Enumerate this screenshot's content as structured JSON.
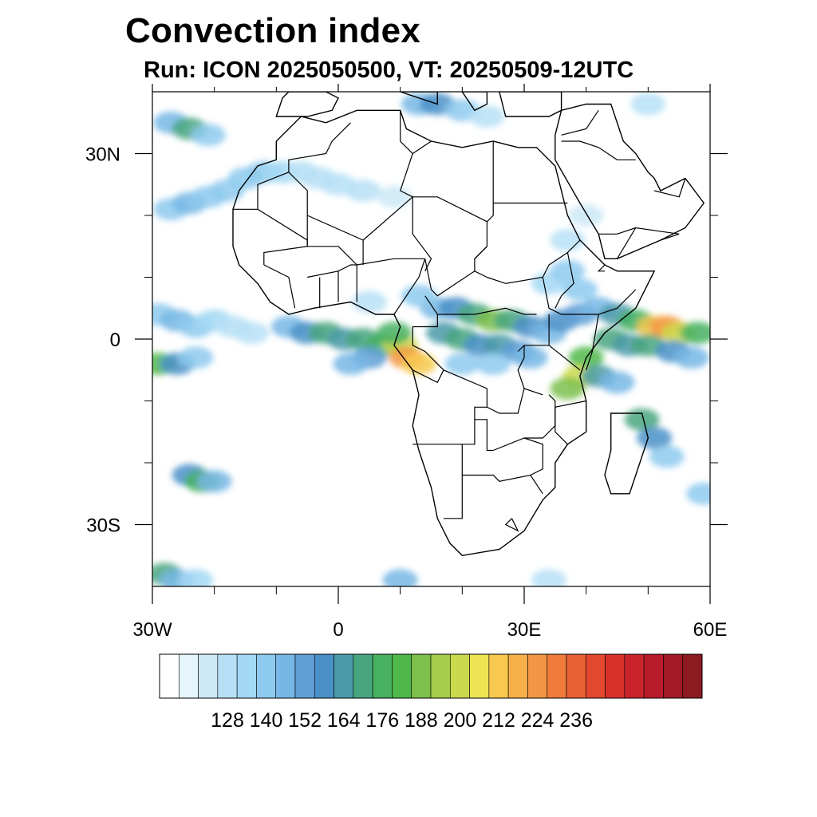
{
  "title": "Convection index",
  "subtitle": "Run: ICON 2025050500,  VT: 20250509-12UTC",
  "map": {
    "lon_range": [
      -30,
      60
    ],
    "lat_range": [
      -40,
      40
    ],
    "lon_ticks": [
      {
        "value": -30,
        "label": "30W"
      },
      {
        "value": 0,
        "label": "0"
      },
      {
        "value": 30,
        "label": "30E"
      },
      {
        "value": 60,
        "label": "60E"
      }
    ],
    "lat_ticks": [
      {
        "value": 30,
        "label": "30N"
      },
      {
        "value": 0,
        "label": "0"
      },
      {
        "value": -30,
        "label": "30S"
      }
    ],
    "minor_lon_ticks": [
      -20,
      -10,
      10,
      20,
      40,
      50
    ],
    "minor_lat_ticks": [
      20,
      10,
      -10,
      -20
    ]
  },
  "colorbar": {
    "colors": [
      "#ffffff",
      "#e6f4fb",
      "#cde9f7",
      "#b7e0f6",
      "#a3d8f5",
      "#8ecaee",
      "#77b7e5",
      "#5f9fd6",
      "#4a90c8",
      "#4a9aa8",
      "#48a67f",
      "#47b061",
      "#4fb84a",
      "#7dc04c",
      "#a7cd4c",
      "#cbd94d",
      "#ede454",
      "#f7c94e",
      "#f6b04a",
      "#f39744",
      "#f07b3b",
      "#e85f33",
      "#e2482e",
      "#d9302c",
      "#c9232c",
      "#b81c2a",
      "#a11a25",
      "#8c1a20"
    ],
    "labels": [
      "128",
      "140",
      "152",
      "164",
      "176",
      "188",
      "200",
      "212",
      "224",
      "236"
    ],
    "label_box_index": [
      2,
      4,
      6,
      8,
      10,
      12,
      14,
      16,
      18,
      20
    ]
  },
  "field_cells": [
    {
      "lon": -27,
      "lat": 35,
      "v": 150
    },
    {
      "lon": -24,
      "lat": 34,
      "v": 170
    },
    {
      "lon": -21,
      "lat": 33,
      "v": 140
    },
    {
      "lon": -27,
      "lat": 21,
      "v": 140
    },
    {
      "lon": -24,
      "lat": 22,
      "v": 150
    },
    {
      "lon": -21,
      "lat": 23,
      "v": 145
    },
    {
      "lon": -18,
      "lat": 24,
      "v": 140
    },
    {
      "lon": -15,
      "lat": 26,
      "v": 145
    },
    {
      "lon": -12,
      "lat": 27,
      "v": 140
    },
    {
      "lon": -9,
      "lat": 27,
      "v": 135
    },
    {
      "lon": -6,
      "lat": 27,
      "v": 132
    },
    {
      "lon": -3,
      "lat": 26,
      "v": 130
    },
    {
      "lon": 0,
      "lat": 25,
      "v": 130
    },
    {
      "lon": 4,
      "lat": 24,
      "v": 128
    },
    {
      "lon": 9,
      "lat": 23,
      "v": 126
    },
    {
      "lon": 13,
      "lat": 38,
      "v": 150
    },
    {
      "lon": 16,
      "lat": 38,
      "v": 160
    },
    {
      "lon": 20,
      "lat": 37,
      "v": 140
    },
    {
      "lon": 24,
      "lat": 36,
      "v": 130
    },
    {
      "lon": 50,
      "lat": 38,
      "v": 130
    },
    {
      "lon": -29,
      "lat": 4,
      "v": 140
    },
    {
      "lon": -26,
      "lat": 3,
      "v": 150
    },
    {
      "lon": -23,
      "lat": 2,
      "v": 140
    },
    {
      "lon": -20,
      "lat": 3,
      "v": 135
    },
    {
      "lon": -17,
      "lat": 2,
      "v": 130
    },
    {
      "lon": -14,
      "lat": 1,
      "v": 128
    },
    {
      "lon": -29,
      "lat": -4,
      "v": 185
    },
    {
      "lon": -26,
      "lat": -4,
      "v": 160
    },
    {
      "lon": -23,
      "lat": -3,
      "v": 145
    },
    {
      "lon": -8,
      "lat": 2,
      "v": 150
    },
    {
      "lon": -5,
      "lat": 1,
      "v": 160
    },
    {
      "lon": -2,
      "lat": 1,
      "v": 170
    },
    {
      "lon": 1,
      "lat": 0,
      "v": 165
    },
    {
      "lon": 4,
      "lat": 0,
      "v": 175
    },
    {
      "lon": 7,
      "lat": -1,
      "v": 180
    },
    {
      "lon": 10,
      "lat": -1,
      "v": 200
    },
    {
      "lon": 11,
      "lat": -3,
      "v": 225
    },
    {
      "lon": 13,
      "lat": -4,
      "v": 215
    },
    {
      "lon": 9,
      "lat": 1,
      "v": 180
    },
    {
      "lon": 5,
      "lat": -3,
      "v": 155
    },
    {
      "lon": 2,
      "lat": -4,
      "v": 150
    },
    {
      "lon": 16,
      "lat": 5,
      "v": 150
    },
    {
      "lon": 19,
      "lat": 5,
      "v": 160
    },
    {
      "lon": 22,
      "lat": 4,
      "v": 175
    },
    {
      "lon": 25,
      "lat": 3,
      "v": 190
    },
    {
      "lon": 28,
      "lat": 3,
      "v": 170
    },
    {
      "lon": 31,
      "lat": 2,
      "v": 160
    },
    {
      "lon": 34,
      "lat": 1,
      "v": 150
    },
    {
      "lon": 17,
      "lat": 1,
      "v": 165
    },
    {
      "lon": 20,
      "lat": 0,
      "v": 170
    },
    {
      "lon": 23,
      "lat": -1,
      "v": 160
    },
    {
      "lon": 26,
      "lat": -1,
      "v": 165
    },
    {
      "lon": 29,
      "lat": -2,
      "v": 155
    },
    {
      "lon": 20,
      "lat": -4,
      "v": 145
    },
    {
      "lon": 25,
      "lat": -4,
      "v": 140
    },
    {
      "lon": 31,
      "lat": -3,
      "v": 150
    },
    {
      "lon": 36,
      "lat": 3,
      "v": 160
    },
    {
      "lon": 39,
      "lat": 4,
      "v": 155
    },
    {
      "lon": 42,
      "lat": 5,
      "v": 150
    },
    {
      "lon": 45,
      "lat": 4,
      "v": 165
    },
    {
      "lon": 48,
      "lat": 3,
      "v": 180
    },
    {
      "lon": 51,
      "lat": 2,
      "v": 215
    },
    {
      "lon": 53,
      "lat": 2,
      "v": 228
    },
    {
      "lon": 55,
      "lat": 1,
      "v": 205
    },
    {
      "lon": 58,
      "lat": 1,
      "v": 180
    },
    {
      "lon": 44,
      "lat": 0,
      "v": 170
    },
    {
      "lon": 47,
      "lat": -1,
      "v": 165
    },
    {
      "lon": 50,
      "lat": -1,
      "v": 170
    },
    {
      "lon": 54,
      "lat": -2,
      "v": 160
    },
    {
      "lon": 57,
      "lat": -3,
      "v": 150
    },
    {
      "lon": 40,
      "lat": -3,
      "v": 185
    },
    {
      "lon": 39,
      "lat": -6,
      "v": 200
    },
    {
      "lon": 37,
      "lat": -8,
      "v": 190
    },
    {
      "lon": 42,
      "lat": -6,
      "v": 165
    },
    {
      "lon": 45,
      "lat": -7,
      "v": 150
    },
    {
      "lon": 49,
      "lat": -13,
      "v": 175
    },
    {
      "lon": 51,
      "lat": -16,
      "v": 160
    },
    {
      "lon": 53,
      "lat": -19,
      "v": 145
    },
    {
      "lon": 59,
      "lat": -25,
      "v": 140
    },
    {
      "lon": 34,
      "lat": 9,
      "v": 135
    },
    {
      "lon": 37,
      "lat": 11,
      "v": 140
    },
    {
      "lon": 39,
      "lat": 8,
      "v": 145
    },
    {
      "lon": 13,
      "lat": 7,
      "v": 140
    },
    {
      "lon": 5,
      "lat": 6,
      "v": 130
    },
    {
      "lon": 37,
      "lat": 16,
      "v": 128
    },
    {
      "lon": 40,
      "lat": 20,
      "v": 126
    },
    {
      "lon": -24,
      "lat": -22,
      "v": 160
    },
    {
      "lon": -22,
      "lat": -23,
      "v": 180
    },
    {
      "lon": -20,
      "lat": -23,
      "v": 150
    },
    {
      "lon": -28,
      "lat": -38,
      "v": 170
    },
    {
      "lon": -26,
      "lat": -39,
      "v": 150
    },
    {
      "lon": -23,
      "lat": -39,
      "v": 135
    },
    {
      "lon": 10,
      "lat": -39,
      "v": 150
    },
    {
      "lon": 34,
      "lat": -39,
      "v": 132
    }
  ],
  "land_polygons": [
    [
      [
        -17,
        21
      ],
      [
        -17,
        15
      ],
      [
        -16,
        12
      ],
      [
        -13,
        9
      ],
      [
        -11,
        6
      ],
      [
        -8,
        4
      ],
      [
        -4,
        5
      ],
      [
        2,
        6
      ],
      [
        6,
        4
      ],
      [
        9,
        4
      ],
      [
        10,
        2
      ],
      [
        9,
        -1
      ],
      [
        12,
        -5
      ],
      [
        13,
        -9
      ],
      [
        12,
        -14
      ],
      [
        13,
        -18
      ],
      [
        15,
        -24
      ],
      [
        16,
        -29
      ],
      [
        18,
        -33
      ],
      [
        20,
        -35
      ],
      [
        26,
        -34
      ],
      [
        30,
        -31
      ],
      [
        33,
        -26
      ],
      [
        35,
        -24
      ],
      [
        35,
        -20
      ],
      [
        37,
        -17
      ],
      [
        40,
        -15
      ],
      [
        40,
        -10
      ],
      [
        39,
        -6
      ],
      [
        40,
        -3
      ],
      [
        43,
        1
      ],
      [
        48,
        5
      ],
      [
        51,
        11
      ],
      [
        45,
        11
      ],
      [
        43,
        12
      ],
      [
        39,
        16
      ],
      [
        37,
        20
      ],
      [
        35,
        28
      ],
      [
        32,
        31
      ],
      [
        29,
        31
      ],
      [
        25,
        32
      ],
      [
        20,
        31
      ],
      [
        15,
        32
      ],
      [
        11,
        34
      ],
      [
        10,
        37
      ],
      [
        3,
        37
      ],
      [
        -2,
        35
      ],
      [
        -6,
        36
      ],
      [
        -10,
        32
      ],
      [
        -10,
        29
      ],
      [
        -13,
        28
      ],
      [
        -16,
        24
      ]
    ],
    [
      [
        44,
        -12
      ],
      [
        49,
        -12
      ],
      [
        50,
        -16
      ],
      [
        48,
        -22
      ],
      [
        47,
        -25
      ],
      [
        44,
        -25
      ],
      [
        43,
        -22
      ],
      [
        44,
        -18
      ]
    ],
    [
      [
        35,
        29
      ],
      [
        39,
        22
      ],
      [
        42,
        17
      ],
      [
        43,
        13
      ],
      [
        45,
        13
      ],
      [
        52,
        16
      ],
      [
        56,
        18
      ],
      [
        59,
        22
      ],
      [
        56,
        26
      ],
      [
        52,
        24
      ],
      [
        51,
        26
      ],
      [
        50,
        27
      ],
      [
        48,
        30
      ],
      [
        46,
        32
      ],
      [
        44,
        38
      ],
      [
        40,
        38
      ],
      [
        36,
        37
      ],
      [
        35,
        33
      ]
    ],
    [
      [
        -10,
        36
      ],
      [
        -9,
        39
      ],
      [
        -8,
        40
      ],
      [
        -2,
        40
      ],
      [
        0,
        39
      ],
      [
        -1,
        37
      ],
      [
        -5,
        36
      ]
    ],
    [
      [
        10,
        40
      ],
      [
        16,
        38
      ],
      [
        16,
        40
      ]
    ],
    [
      [
        20,
        40
      ],
      [
        22,
        37
      ],
      [
        24,
        38
      ],
      [
        24,
        40
      ]
    ],
    [
      [
        26,
        40
      ],
      [
        27,
        36
      ],
      [
        34,
        36
      ],
      [
        36,
        37
      ],
      [
        36,
        40
      ]
    ]
  ],
  "borders": [
    [
      [
        -17,
        21
      ],
      [
        -13,
        21
      ],
      [
        -13,
        25
      ],
      [
        -8,
        27
      ],
      [
        -8,
        29
      ],
      [
        -2,
        30
      ],
      [
        -1,
        32
      ],
      [
        2,
        35
      ]
    ],
    [
      [
        -13,
        21
      ],
      [
        -5,
        16
      ],
      [
        -5,
        15
      ],
      [
        -12,
        14
      ],
      [
        -12,
        12
      ]
    ],
    [
      [
        -8,
        27
      ],
      [
        -5,
        24
      ],
      [
        -5,
        20
      ],
      [
        4,
        16
      ],
      [
        4,
        12
      ]
    ],
    [
      [
        -5,
        20
      ],
      [
        -5,
        15
      ],
      [
        0,
        15
      ],
      [
        3,
        12
      ]
    ],
    [
      [
        4,
        16
      ],
      [
        12,
        23
      ],
      [
        12,
        17
      ],
      [
        15,
        13
      ],
      [
        14,
        11
      ]
    ],
    [
      [
        12,
        23
      ],
      [
        16,
        23
      ],
      [
        24,
        19
      ],
      [
        24,
        15
      ],
      [
        22,
        13
      ]
    ],
    [
      [
        25,
        32
      ],
      [
        25,
        20
      ],
      [
        24,
        19
      ]
    ],
    [
      [
        25,
        22
      ],
      [
        37,
        22
      ]
    ],
    [
      [
        10,
        37
      ],
      [
        10,
        32
      ],
      [
        12,
        30
      ],
      [
        10,
        24
      ],
      [
        12,
        23
      ]
    ],
    [
      [
        15,
        32
      ],
      [
        12,
        30
      ]
    ],
    [
      [
        -12,
        12
      ],
      [
        -8,
        10
      ],
      [
        -7,
        5
      ]
    ],
    [
      [
        -5,
        10
      ],
      [
        0,
        11
      ],
      [
        2,
        12
      ],
      [
        3,
        12
      ]
    ],
    [
      [
        -3,
        5
      ],
      [
        -3,
        10
      ]
    ],
    [
      [
        0,
        11
      ],
      [
        0,
        6
      ]
    ],
    [
      [
        3,
        6
      ],
      [
        3,
        12
      ]
    ],
    [
      [
        3,
        12
      ],
      [
        9,
        13
      ],
      [
        14,
        13
      ]
    ],
    [
      [
        9,
        4
      ],
      [
        11,
        7
      ],
      [
        13,
        10
      ],
      [
        14,
        13
      ]
    ],
    [
      [
        14,
        13
      ],
      [
        15,
        8
      ],
      [
        16,
        7
      ],
      [
        19,
        9
      ],
      [
        22,
        11
      ],
      [
        24,
        10
      ]
    ],
    [
      [
        14,
        7
      ],
      [
        16,
        4
      ],
      [
        16,
        2
      ],
      [
        12,
        2
      ]
    ],
    [
      [
        16,
        4
      ],
      [
        22,
        4
      ],
      [
        27,
        5
      ],
      [
        30,
        4
      ],
      [
        32,
        4
      ]
    ],
    [
      [
        24,
        10
      ],
      [
        27,
        9
      ],
      [
        33,
        10
      ],
      [
        34,
        12
      ],
      [
        37,
        14
      ],
      [
        39,
        16
      ]
    ],
    [
      [
        22,
        11
      ],
      [
        22,
        13
      ],
      [
        24,
        15
      ]
    ],
    [
      [
        33,
        10
      ],
      [
        34,
        5
      ],
      [
        36,
        4
      ],
      [
        42,
        4
      ],
      [
        45,
        5
      ],
      [
        48,
        8
      ]
    ],
    [
      [
        37,
        14
      ],
      [
        38,
        9
      ],
      [
        36,
        7
      ],
      [
        35,
        5
      ]
    ],
    [
      [
        42,
        4
      ],
      [
        41,
        -2
      ],
      [
        40,
        -5
      ]
    ],
    [
      [
        34,
        4
      ],
      [
        34,
        0
      ],
      [
        34,
        -1
      ],
      [
        30,
        -1
      ],
      [
        29,
        -2
      ]
    ],
    [
      [
        34,
        -1
      ],
      [
        39,
        -5
      ]
    ],
    [
      [
        30,
        -1
      ],
      [
        30,
        -3
      ],
      [
        29,
        -5
      ],
      [
        30,
        -8
      ],
      [
        33,
        -9
      ]
    ],
    [
      [
        12,
        2
      ],
      [
        12,
        -1
      ],
      [
        14,
        -2
      ],
      [
        17,
        -5
      ],
      [
        16,
        -7
      ],
      [
        12,
        -5
      ]
    ],
    [
      [
        17,
        -5
      ],
      [
        24,
        -8
      ],
      [
        24,
        -11
      ],
      [
        26,
        -12
      ],
      [
        29,
        -12
      ],
      [
        30,
        -8
      ]
    ],
    [
      [
        24,
        -11
      ],
      [
        22,
        -11
      ],
      [
        22,
        -13
      ],
      [
        22,
        -17
      ],
      [
        20,
        -17
      ],
      [
        12,
        -17
      ]
    ],
    [
      [
        22,
        -13
      ],
      [
        24,
        -13
      ],
      [
        24,
        -18
      ],
      [
        25,
        -18
      ]
    ],
    [
      [
        20,
        -17
      ],
      [
        20,
        -22
      ],
      [
        20,
        -29
      ],
      [
        17,
        -29
      ]
    ],
    [
      [
        20,
        -22
      ],
      [
        25,
        -22
      ],
      [
        26,
        -23
      ],
      [
        31,
        -22
      ],
      [
        33,
        -25
      ]
    ],
    [
      [
        25,
        -18
      ],
      [
        30,
        -16
      ],
      [
        33,
        -16
      ],
      [
        35,
        -14
      ],
      [
        35,
        -10
      ],
      [
        34,
        -9
      ]
    ],
    [
      [
        30,
        -16
      ],
      [
        33,
        -17
      ],
      [
        33,
        -21
      ],
      [
        31,
        -22
      ]
    ],
    [
      [
        28,
        -29
      ],
      [
        29,
        -31
      ],
      [
        27,
        -30
      ],
      [
        28,
        -29
      ]
    ],
    [
      [
        40,
        -10
      ],
      [
        35,
        -11
      ],
      [
        35,
        -15
      ],
      [
        37,
        -17
      ]
    ],
    [
      [
        45,
        13
      ],
      [
        48,
        18
      ],
      [
        55,
        17
      ],
      [
        52,
        16
      ]
    ],
    [
      [
        42,
        17
      ],
      [
        45,
        17
      ],
      [
        48,
        18
      ]
    ],
    [
      [
        43,
        12
      ],
      [
        42,
        11
      ],
      [
        43,
        11
      ]
    ],
    [
      [
        56,
        26
      ],
      [
        55,
        23
      ],
      [
        51,
        24
      ]
    ],
    [
      [
        36,
        32
      ],
      [
        39,
        32
      ],
      [
        42,
        31
      ],
      [
        45,
        29
      ],
      [
        48,
        29
      ]
    ],
    [
      [
        36,
        33
      ],
      [
        40,
        34
      ],
      [
        42,
        37
      ]
    ]
  ]
}
